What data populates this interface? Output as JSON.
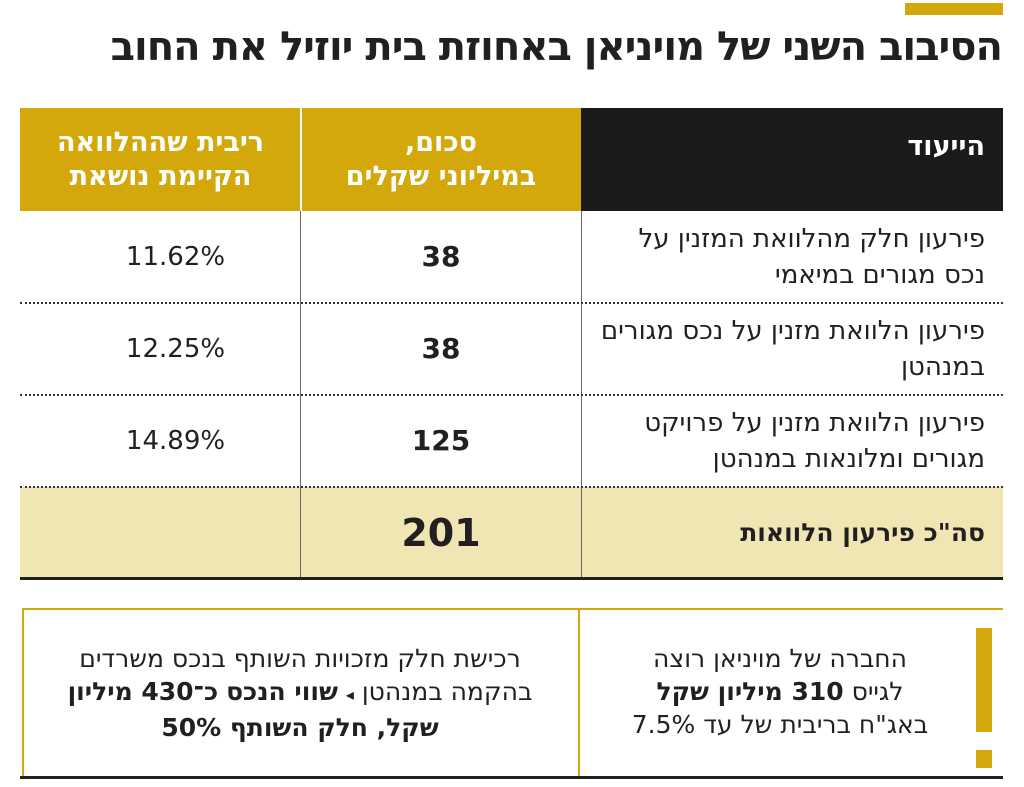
{
  "title": "הסיבוב השני של מויניאן באחוזת בית יוזיל את החוב",
  "colors": {
    "gold": "#d4a80b",
    "dark": "#1a1a1a",
    "total_bg": "#efe6b4"
  },
  "table": {
    "headers": [
      "הייעוד",
      "סכום,\nבמיליוני שקלים",
      "ריבית שההלוואה\nהקיימת נושאת"
    ],
    "rows": [
      {
        "purpose": "פירעון חלק מהלוואת המזנין על נכס מגורים במיאמי",
        "amount": "38",
        "rate": "11.62%"
      },
      {
        "purpose": "פירעון הלוואת מזנין על נכס מגורים במנהטן",
        "amount": "38",
        "rate": "12.25%"
      },
      {
        "purpose": "פירעון הלוואת מזנין על פרויקט מגורים ומלונאות במנהטן",
        "amount": "125",
        "rate": "14.89%"
      }
    ],
    "total": {
      "label": "סה\"כ פירעון הלוואות",
      "amount": "201"
    }
  },
  "note_right": {
    "line1": "החברה של מויניאן רוצה",
    "line2_pre": "לגייס ",
    "line2_bold": "310 מיליון שקל",
    "line3": "באג\"ח בריבית של עד 7.5%",
    "icon": "exclamation-icon"
  },
  "note_left": {
    "text1": "רכישת חלק מזכויות השותף בנכס משרדים בהקמה במנהטן",
    "arrow": "◂",
    "bold1": "שווי הנכס",
    "bold2": "כ־430 מיליון שקל, חלק השותף 50%"
  }
}
